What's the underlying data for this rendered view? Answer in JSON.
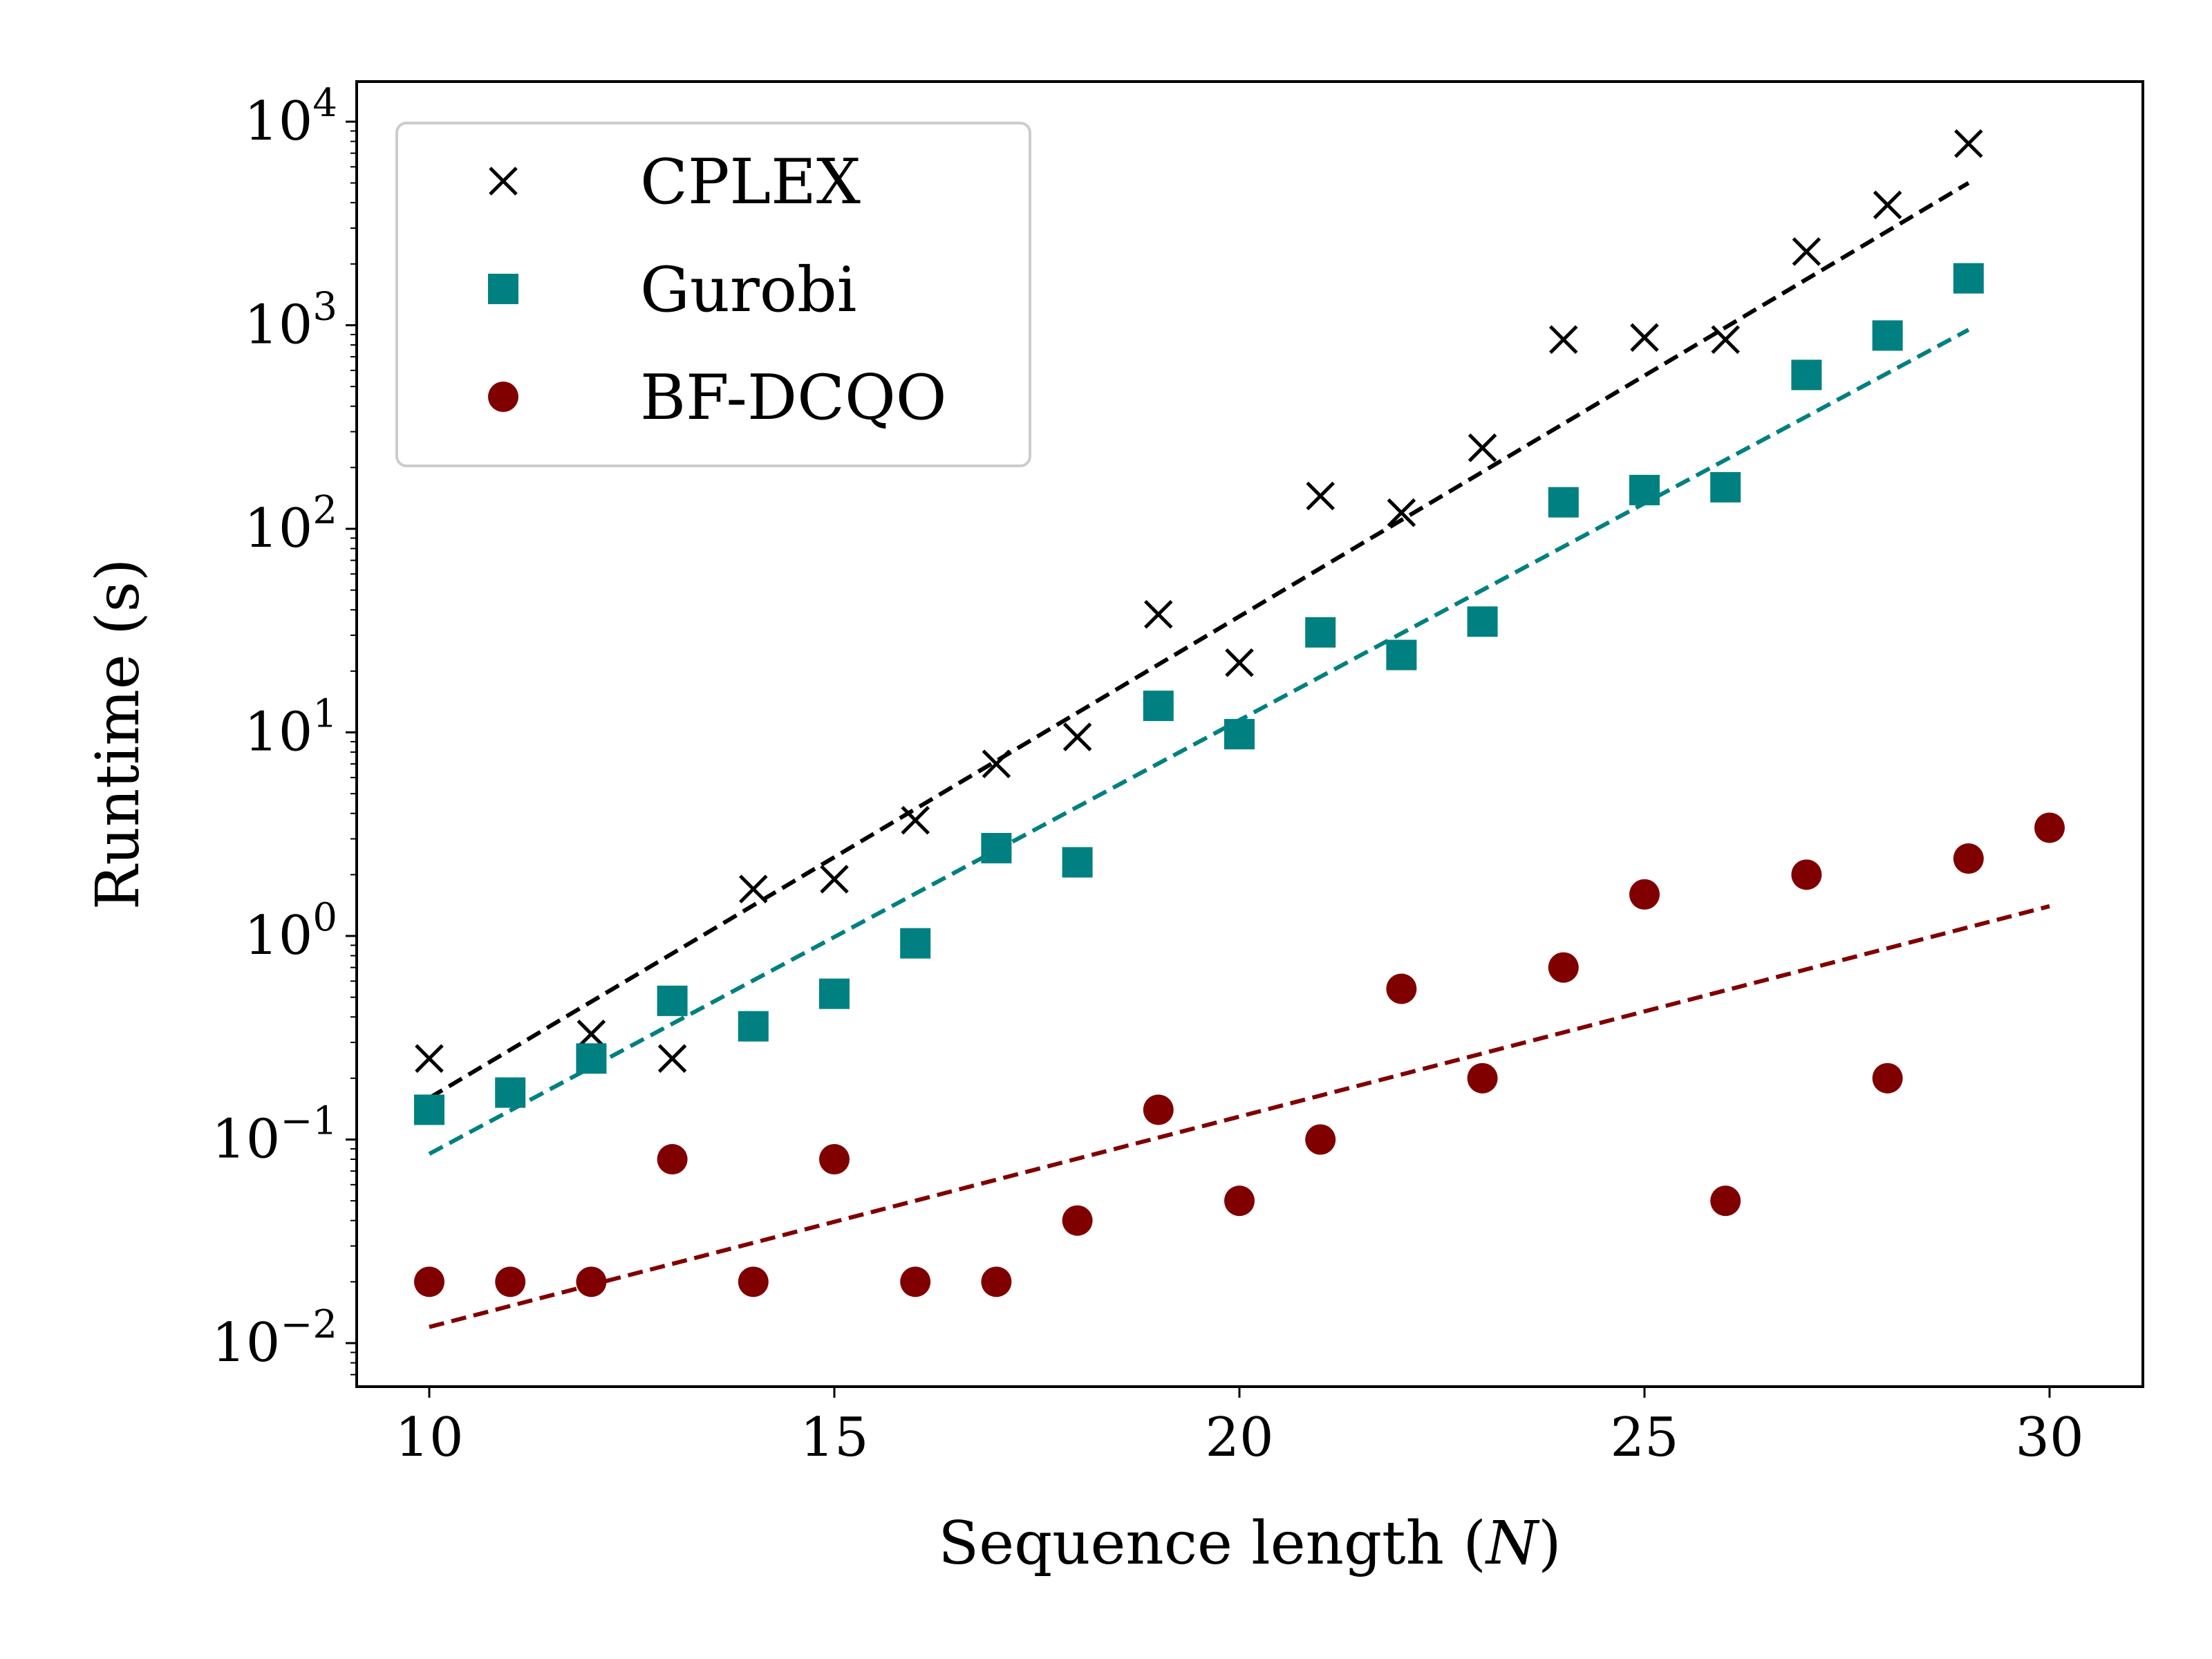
{
  "chart_data": {
    "type": "scatter",
    "title": "",
    "xlabel": "Sequence length",
    "xlabel_var": "N",
    "ylabel": "Runtime (s)",
    "xlim": [
      9,
      31
    ],
    "ylim_log10": [
      -2.2,
      4.2
    ],
    "yscale": "log",
    "grid": false,
    "legend_position": "top-left",
    "x_ticks": [
      10,
      15,
      20,
      25,
      30
    ],
    "y_ticks": [
      {
        "base": "10",
        "exp": "-2",
        "value": 0.01
      },
      {
        "base": "10",
        "exp": "-1",
        "value": 0.1
      },
      {
        "base": "10",
        "exp": "0",
        "value": 1
      },
      {
        "base": "10",
        "exp": "1",
        "value": 10
      },
      {
        "base": "10",
        "exp": "2",
        "value": 100
      },
      {
        "base": "10",
        "exp": "3",
        "value": 1000
      },
      {
        "base": "10",
        "exp": "4",
        "value": 10000
      }
    ],
    "series": [
      {
        "name": "CPLEX",
        "marker": "x",
        "color": "#000000",
        "x": [
          10,
          12,
          13,
          14,
          15,
          16,
          17,
          18,
          19,
          20,
          21,
          22,
          23,
          24,
          25,
          26,
          27,
          28,
          29
        ],
        "values": [
          0.25,
          0.33,
          0.25,
          1.7,
          1.9,
          3.7,
          7.0,
          9.5,
          38,
          22,
          145,
          120,
          250,
          850,
          870,
          850,
          2300,
          3900,
          7800
        ],
        "fit": {
          "x": [
            10,
            29
          ],
          "values": [
            0.16,
            5000
          ]
        }
      },
      {
        "name": "Gurobi",
        "marker": "square",
        "color": "#008080",
        "x": [
          10,
          11,
          12,
          13,
          14,
          15,
          16,
          17,
          18,
          19,
          20,
          21,
          22,
          23,
          24,
          25,
          26,
          27,
          28,
          29
        ],
        "values": [
          0.14,
          0.17,
          0.25,
          0.48,
          0.36,
          0.52,
          0.92,
          2.7,
          2.3,
          13.5,
          9.8,
          31,
          24,
          35,
          135,
          155,
          160,
          570,
          890,
          1700
        ],
        "fit": {
          "x": [
            10,
            29
          ],
          "values": [
            0.085,
            950
          ]
        }
      },
      {
        "name": "BF-DCQO",
        "marker": "circle",
        "color": "#800000",
        "x": [
          10,
          11,
          12,
          13,
          14,
          15,
          16,
          17,
          18,
          19,
          20,
          21,
          22,
          23,
          24,
          25,
          26,
          27,
          28,
          29,
          30
        ],
        "values": [
          0.02,
          0.02,
          0.02,
          0.08,
          0.02,
          0.08,
          0.02,
          0.02,
          0.04,
          0.14,
          0.05,
          0.1,
          0.55,
          0.2,
          0.7,
          1.6,
          0.05,
          2.0,
          0.2,
          2.4,
          3.4
        ],
        "fit": {
          "x": [
            10,
            30
          ],
          "values": [
            0.012,
            1.4
          ]
        }
      }
    ]
  }
}
